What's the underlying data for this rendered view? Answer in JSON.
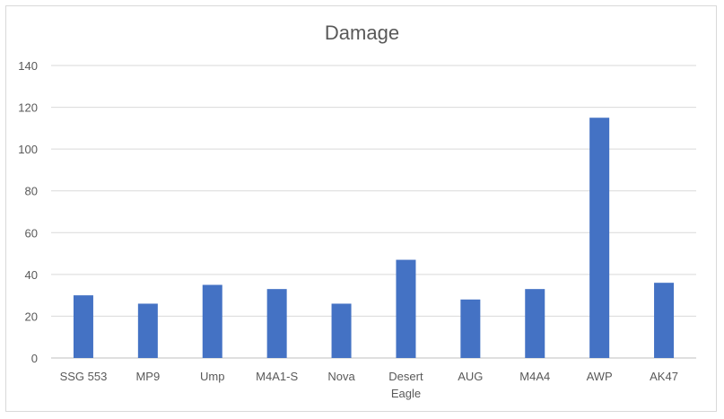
{
  "chart_data": {
    "type": "bar",
    "title": "Damage",
    "categories": [
      "SSG 553",
      "MP9",
      "Ump",
      "M4A1-S",
      "Nova",
      "Desert Eagle",
      "AUG",
      "M4A4",
      "AWP",
      "AK47"
    ],
    "values": [
      30,
      26,
      35,
      33,
      26,
      47,
      28,
      33,
      115,
      36
    ],
    "ylim": [
      0,
      140
    ],
    "yticks": [
      0,
      20,
      40,
      60,
      80,
      100,
      120,
      140
    ],
    "grid": true,
    "legend": "none",
    "bar_color": "#4472c4",
    "xlabel": "",
    "ylabel": ""
  }
}
